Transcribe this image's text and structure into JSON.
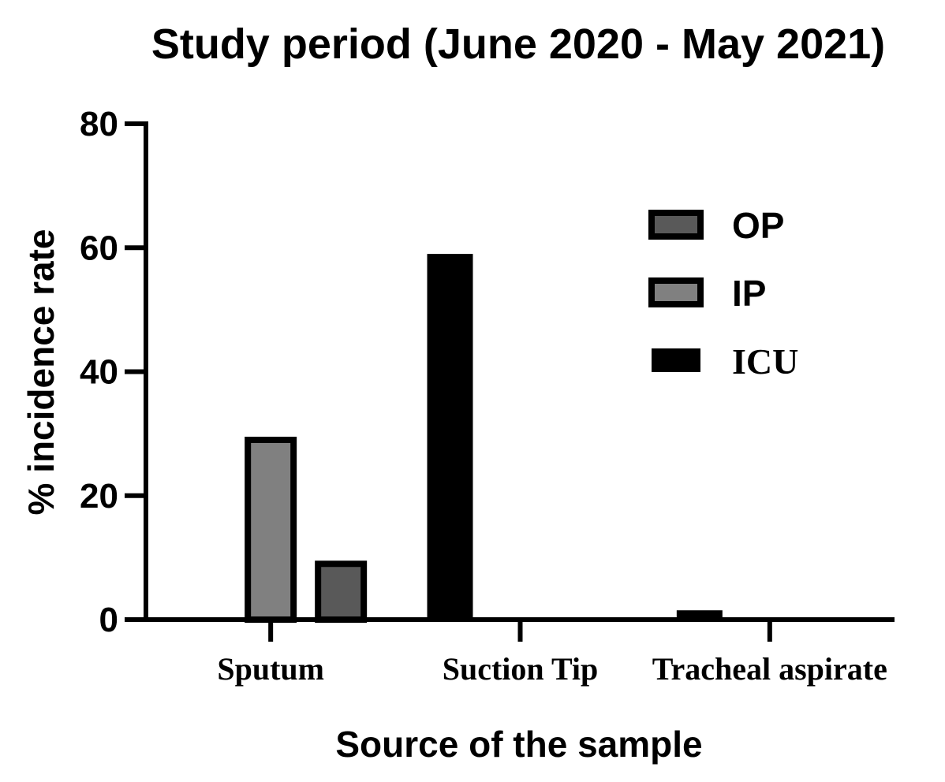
{
  "chart_data": {
    "type": "bar",
    "title": "Study period (June 2020 - May 2021)",
    "xlabel": "Source of the sample",
    "ylabel": "% incidence rate",
    "categories": [
      "Sputum",
      "Suction Tip",
      "Tracheal aspirate"
    ],
    "series": [
      {
        "name": "OP",
        "values": [
          9,
          0,
          0
        ],
        "fill": "#595959"
      },
      {
        "name": "IP",
        "values": [
          29,
          0,
          0
        ],
        "fill": "#808080"
      },
      {
        "name": "ICU",
        "values": [
          0,
          59,
          1.5
        ],
        "fill": "#000000"
      }
    ],
    "ylim": [
      0,
      80
    ],
    "yticks": [
      "0",
      "20",
      "40",
      "60",
      "80"
    ],
    "grid": false,
    "legend_position": "top-right"
  }
}
